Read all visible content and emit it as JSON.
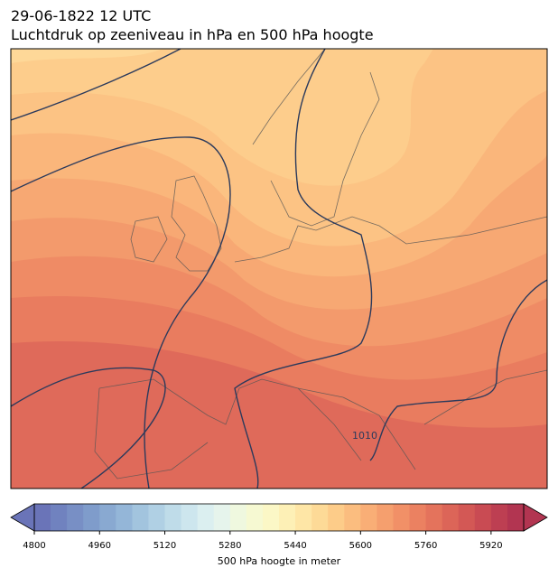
{
  "title": "29-06-1822 12 UTC",
  "subtitle": "Luchtdruk op zeeniveau in hPa en 500 hPa hoogte",
  "map": {
    "isobar_label": "1010"
  },
  "colorbar": {
    "label": "500 hPa hoogte in meter",
    "lim": [
      4800,
      6000
    ],
    "ticks": [
      4800,
      4960,
      5120,
      5280,
      5440,
      5600,
      5760,
      5920
    ],
    "colors": [
      "#6a74b8",
      "#7082bf",
      "#788fc5",
      "#7f9ccb",
      "#89a9d1",
      "#94b6d8",
      "#a2c4de",
      "#b0d0e4",
      "#bfdce9",
      "#cde6ee",
      "#dbeff0",
      "#e6f4ec",
      "#eff8df",
      "#f6f9d2",
      "#fbf7c6",
      "#fdf0b6",
      "#fee6a6",
      "#fdda97",
      "#fdcc89",
      "#fbbd7f",
      "#f9ae76",
      "#f59f6e",
      "#f19067",
      "#eb8161",
      "#e4735c",
      "#dc6558",
      "#d35855",
      "#c94b53",
      "#bd3f52",
      "#b23551"
    ]
  }
}
